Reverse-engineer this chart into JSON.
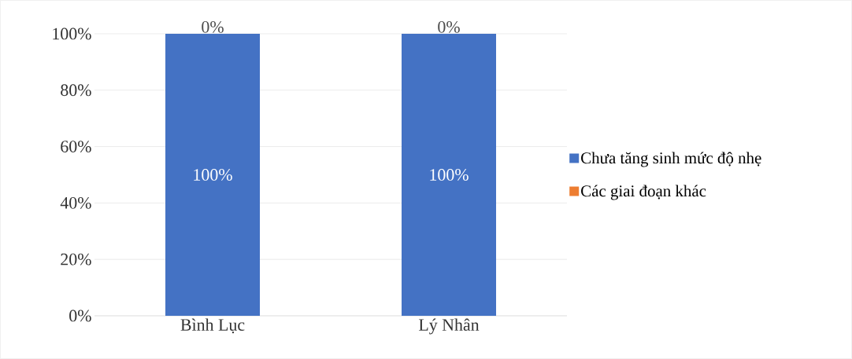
{
  "chart_data": {
    "type": "bar",
    "stacked": true,
    "categories": [
      "Bình Lục",
      "Lý Nhân"
    ],
    "series": [
      {
        "name": "Chưa tăng sinh mức độ nhẹ",
        "color": "#4472c4",
        "values": [
          100,
          100
        ],
        "value_labels": [
          "100%",
          "100%"
        ]
      },
      {
        "name": "Các giai đoạn khác",
        "color": "#ed7d31",
        "values": [
          0,
          0
        ],
        "value_labels": [
          "0%",
          "0%"
        ]
      }
    ],
    "ylim": [
      0,
      100
    ],
    "yticks": [
      {
        "value": 0,
        "label": "0%"
      },
      {
        "value": 20,
        "label": "20%"
      },
      {
        "value": 40,
        "label": "40%"
      },
      {
        "value": 60,
        "label": "60%"
      },
      {
        "value": 80,
        "label": "80%"
      },
      {
        "value": 100,
        "label": "100%"
      }
    ],
    "grid": "y",
    "legend": "right"
  }
}
